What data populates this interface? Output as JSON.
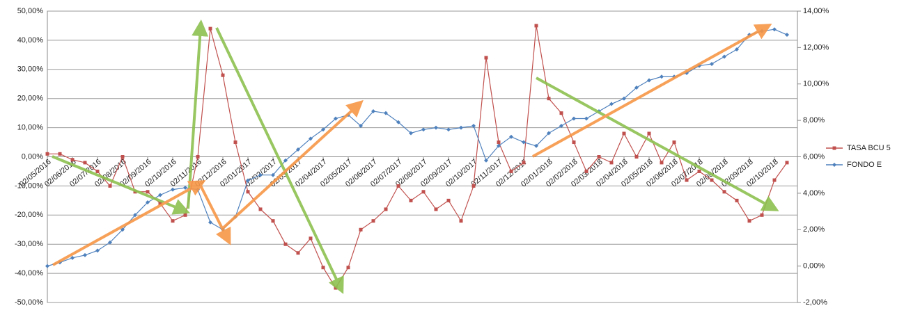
{
  "chart_data": {
    "type": "line",
    "categories": [
      "02/05/2016",
      null,
      "02/06/2016",
      null,
      "02/07/2016",
      null,
      "02/08/2016",
      null,
      "02/09/2016",
      null,
      "02/10/2016",
      null,
      "02/11/2016",
      null,
      "02/12/2016",
      null,
      "02/01/2017",
      null,
      "02/02/2017",
      null,
      "02/03/2017",
      null,
      "02/04/2017",
      null,
      "02/05/2017",
      null,
      "02/06/2017",
      null,
      "02/07/2017",
      null,
      "02/08/2017",
      null,
      "02/09/2017",
      null,
      "02/10/2017",
      null,
      "02/11/2017",
      null,
      "02/12/2017",
      null,
      "02/01/2018",
      null,
      "02/02/2018",
      null,
      "02/03/2018",
      null,
      "02/04/2018",
      null,
      "02/05/2018",
      null,
      "02/06/2018",
      null,
      "02/07/2018",
      null,
      "02/08/2018",
      null,
      "02/09/2018",
      null,
      "02/10/2018",
      null
    ],
    "series": [
      {
        "name": "TASA BCU 5",
        "color": "#c0504d",
        "axis": "y",
        "values": [
          1,
          1,
          -1,
          -2,
          -5,
          -10,
          0,
          -12,
          -12,
          -16,
          -22,
          -20,
          0,
          44,
          28,
          5,
          -12,
          -18,
          -22,
          -30,
          -33,
          -28,
          -38,
          -45,
          -38,
          -25,
          -22,
          -18,
          -10,
          -15,
          -12,
          -18,
          -15,
          -22,
          -10,
          34,
          5,
          -5,
          -2,
          45,
          20,
          15,
          5,
          -5,
          0,
          -2,
          8,
          0,
          8,
          -2,
          5,
          -8,
          -5,
          -8,
          -12,
          -15,
          -22,
          -20,
          -8,
          -2
        ]
      },
      {
        "name": "FONDO E",
        "color": "#4f81bd",
        "axis": "y2",
        "values": [
          0,
          0.2,
          0.45,
          0.6,
          0.85,
          1.3,
          2,
          2.8,
          3.5,
          3.9,
          4.2,
          4.3,
          4.2,
          2.4,
          2,
          2.7,
          4.7,
          5,
          5,
          5.8,
          6.4,
          7,
          7.5,
          8.1,
          8.3,
          7.7,
          8.5,
          8.4,
          7.9,
          7.3,
          7.5,
          7.6,
          7.5,
          7.6,
          7.7,
          5.8,
          6.6,
          7.1,
          6.8,
          6.6,
          7.3,
          7.7,
          8.1,
          8.1,
          8.5,
          8.9,
          9.2,
          9.8,
          10.2,
          10.4,
          10.4,
          10.6,
          11,
          11.1,
          11.5,
          11.9,
          12.7,
          12.9,
          13,
          12.7
        ]
      }
    ],
    "ylim": [
      -50,
      50
    ],
    "yticks": [
      {
        "value": -50,
        "label": "-50,00%"
      },
      {
        "value": -40,
        "label": "-40,00%"
      },
      {
        "value": -30,
        "label": "-30,00%"
      },
      {
        "value": -20,
        "label": "-20,00%"
      },
      {
        "value": -10,
        "label": "-10,00%"
      },
      {
        "value": 0,
        "label": "0,00%"
      },
      {
        "value": 10,
        "label": "10,00%"
      },
      {
        "value": 20,
        "label": "20,00%"
      },
      {
        "value": 30,
        "label": "30,00%"
      },
      {
        "value": 40,
        "label": "40,00%"
      },
      {
        "value": 50,
        "label": "50,00%"
      }
    ],
    "y2lim": [
      -2,
      14
    ],
    "y2ticks": [
      {
        "value": -2,
        "label": "-2,00%"
      },
      {
        "value": 0,
        "label": "0,00%"
      },
      {
        "value": 2,
        "label": "2,00%"
      },
      {
        "value": 4,
        "label": "4,00%"
      },
      {
        "value": 6,
        "label": "6,00%"
      },
      {
        "value": 8,
        "label": "8,00%"
      },
      {
        "value": 10,
        "label": "10,00%"
      },
      {
        "value": 12,
        "label": "12,00%"
      },
      {
        "value": 14,
        "label": "14,00%"
      }
    ],
    "grid": true,
    "legend": "right"
  }
}
